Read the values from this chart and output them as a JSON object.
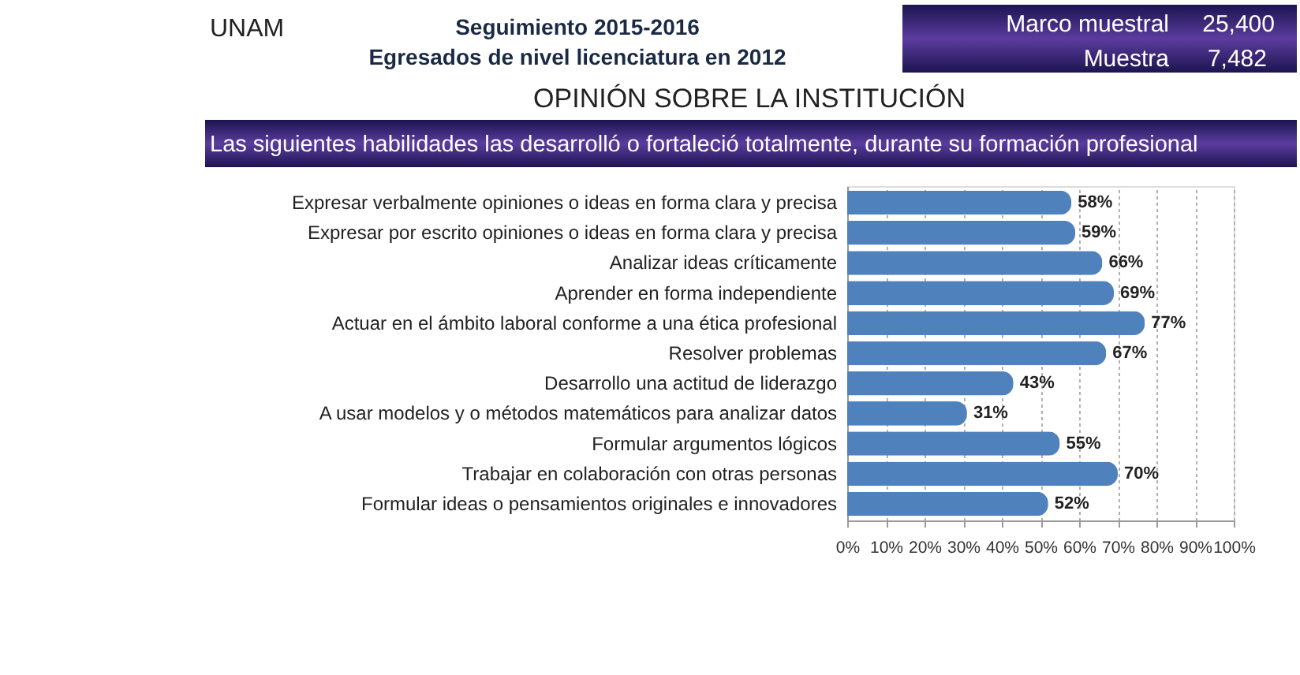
{
  "chart_data": {
    "type": "bar",
    "orientation": "horizontal",
    "title": "Seguimiento 2015-2016",
    "subtitle": "Egresados de nivel licenciatura en 2012",
    "annotations": [
      "UNAM",
      "Marco muestral",
      "25,400",
      "Muestra",
      "7,482",
      "OPINIÓN SOBRE LA INSTITUCIÓN",
      "Las siguientes habilidades las desarrolló o fortaleció totalmente, durante su formación profesional"
    ],
    "categories": [
      "Expresar verbalmente opiniones o ideas en forma clara y precisa",
      "Expresar por escrito opiniones o ideas en forma clara y precisa",
      "Analizar ideas críticamente",
      "Aprender en forma independiente",
      "Actuar en el ámbito laboral conforme a una ética profesional",
      "Resolver problemas",
      "Desarrollo una actitud de liderazgo",
      "A usar modelos y o métodos matemáticos para analizar datos",
      "Formular argumentos lógicos",
      "Trabajar en colaboración con otras personas",
      "Formular ideas o pensamientos originales e innovadores"
    ],
    "values": [
      58,
      59,
      66,
      69,
      77,
      67,
      43,
      31,
      55,
      70,
      52
    ],
    "value_labels": [
      "58%",
      "59%",
      "66%",
      "69%",
      "77%",
      "67%",
      "43%",
      "31%",
      "55%",
      "70%",
      "52%"
    ],
    "color": "#4f81bd",
    "xlim": [
      0,
      100
    ],
    "xticks": [
      {
        "value": 0,
        "label": "0%"
      },
      {
        "value": 10,
        "label": "10%"
      },
      {
        "value": 20,
        "label": "20%"
      },
      {
        "value": 30,
        "label": "30%"
      },
      {
        "value": 40,
        "label": "40%"
      },
      {
        "value": 50,
        "label": "50%"
      },
      {
        "value": 60,
        "label": "60%"
      },
      {
        "value": 70,
        "label": "70%"
      },
      {
        "value": 80,
        "label": "80%"
      },
      {
        "value": 90,
        "label": "90%"
      },
      {
        "value": 100,
        "label": "100%"
      }
    ],
    "grid": "x"
  }
}
